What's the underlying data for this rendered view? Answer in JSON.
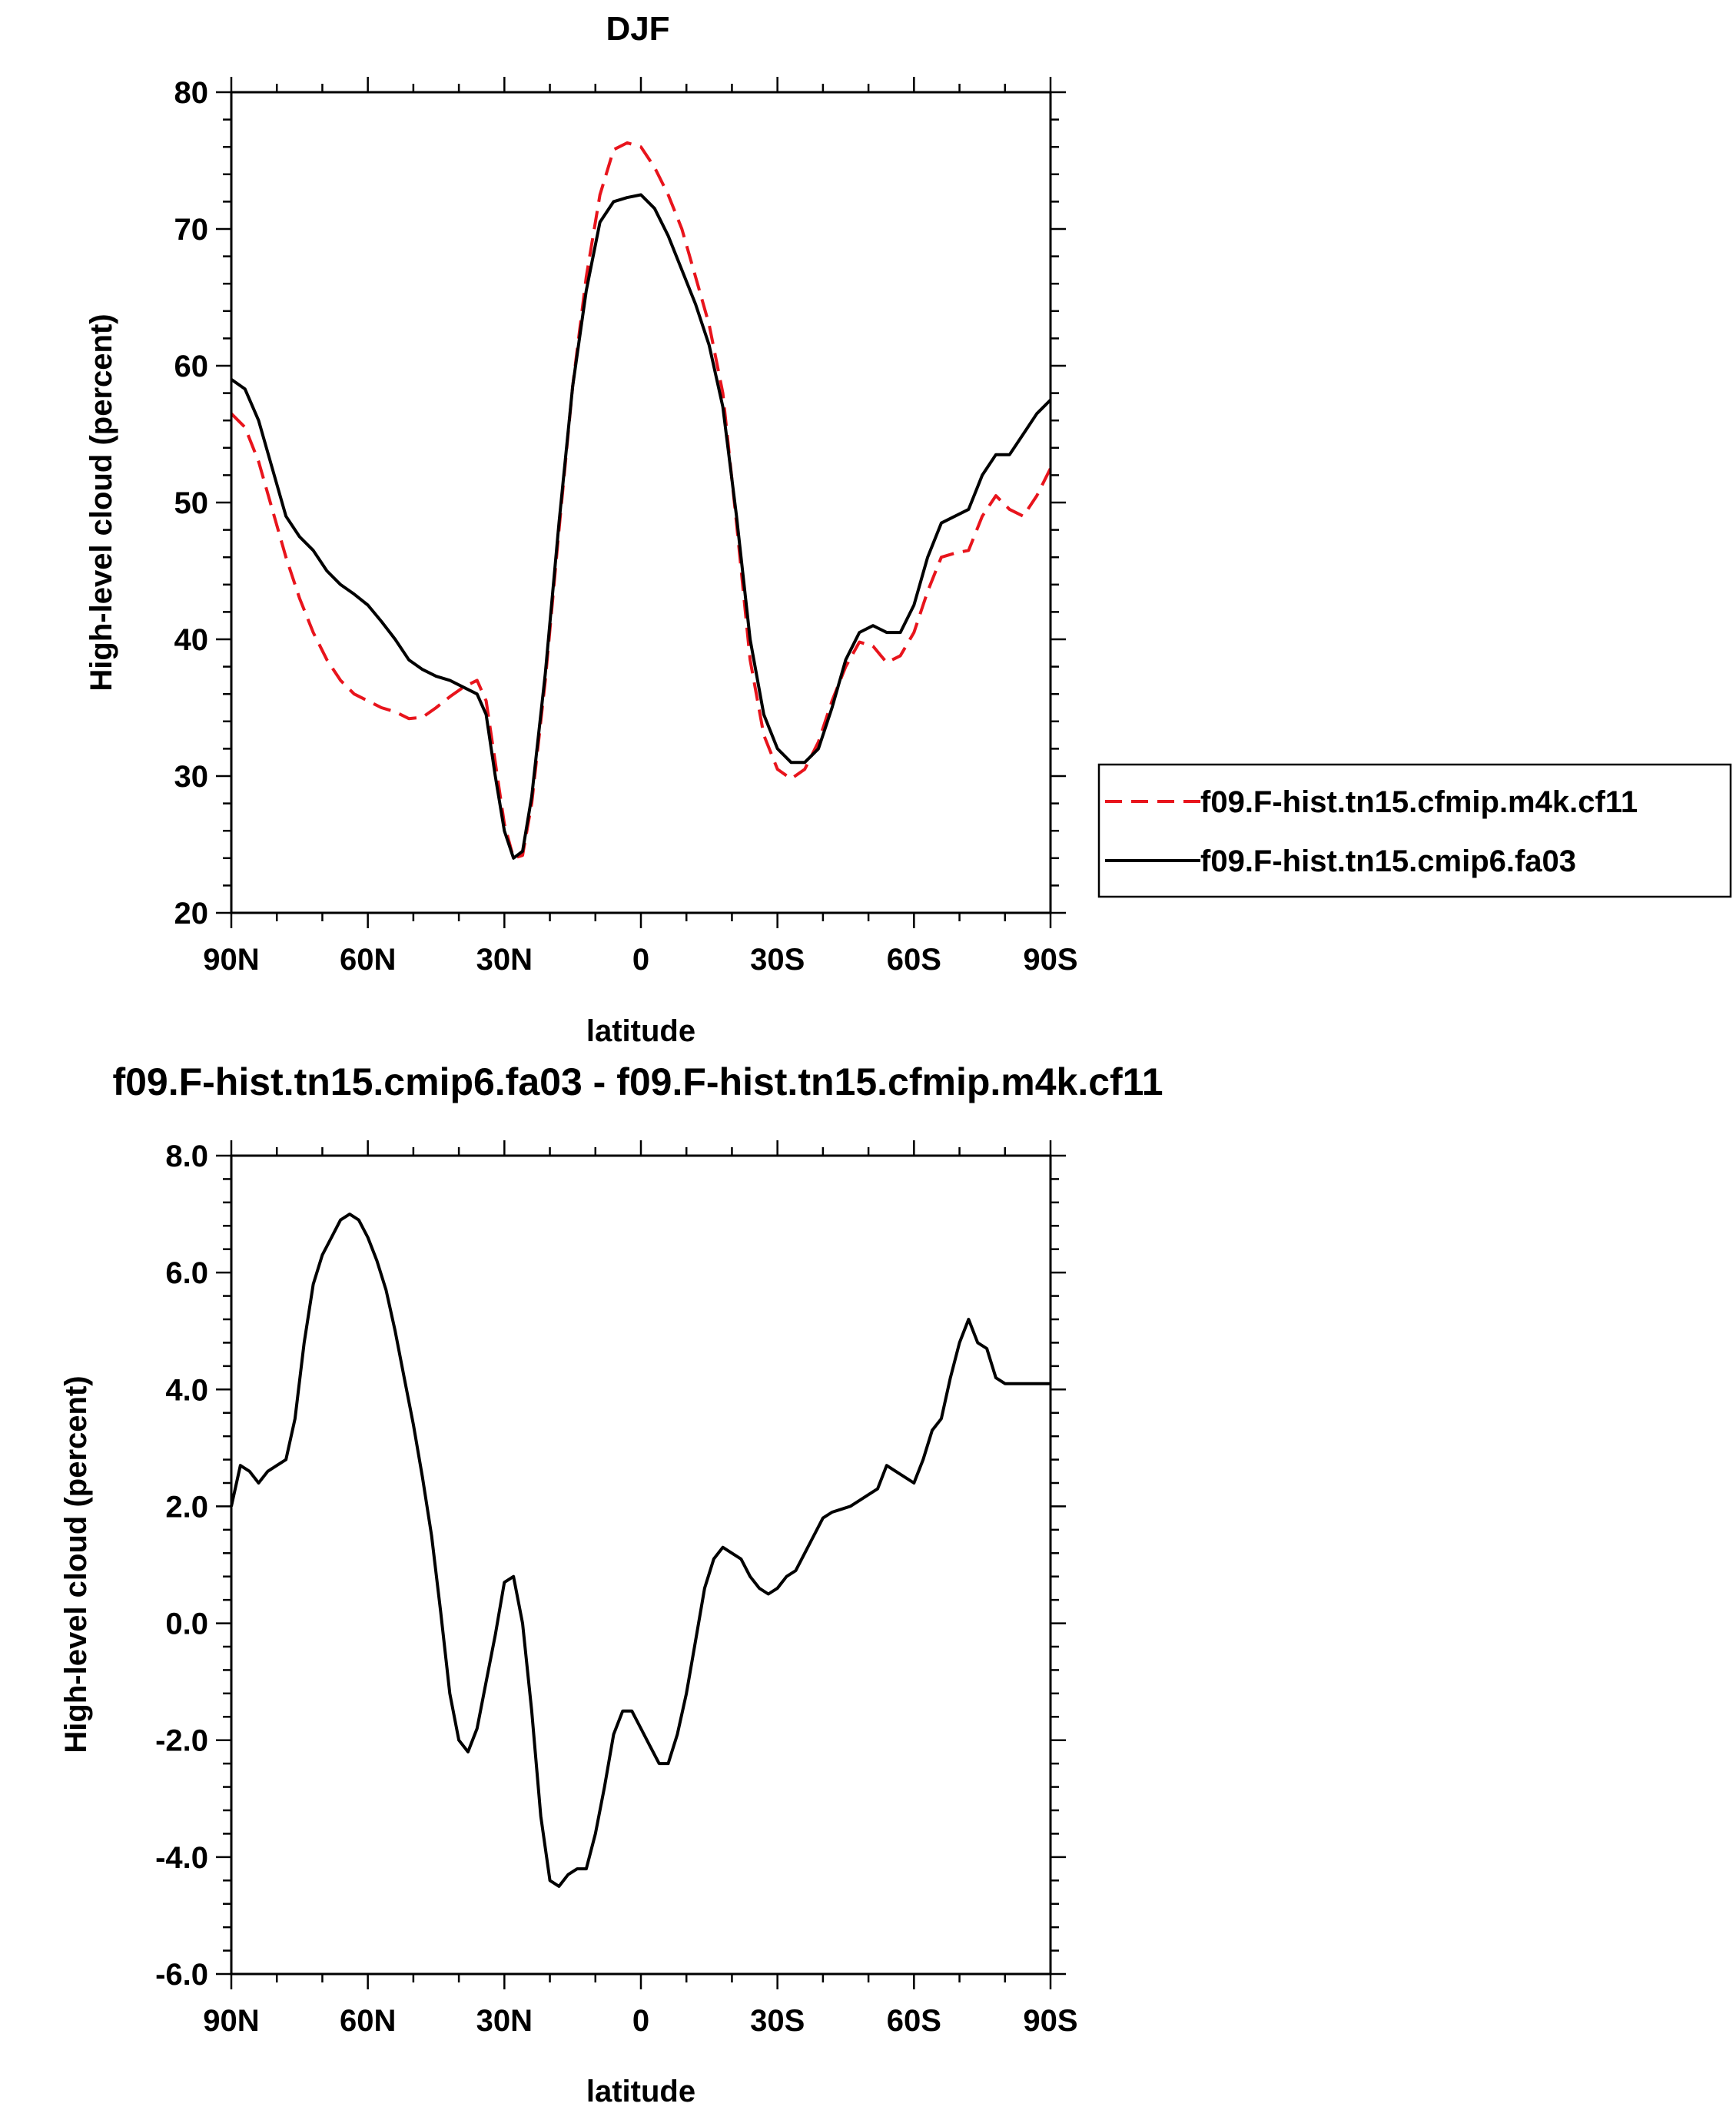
{
  "chart_data": [
    {
      "type": "line",
      "title": "DJF",
      "xlabel": "latitude",
      "ylabel": "High-level cloud (percent)",
      "xlim": [
        -90,
        90
      ],
      "ylim": [
        20,
        80
      ],
      "x_ticks": [
        -90,
        -60,
        -30,
        0,
        30,
        60,
        90
      ],
      "x_tick_labels": [
        "90N",
        "60N",
        "30N",
        "0",
        "30S",
        "60S",
        "90S"
      ],
      "y_ticks": [
        20,
        30,
        40,
        50,
        60,
        70,
        80
      ],
      "y_tick_labels": [
        "20",
        "30",
        "40",
        "50",
        "60",
        "70",
        "80"
      ],
      "legend_position": "right",
      "series": [
        {
          "name": "f09.F-hist.tn15.cfmip.m4k.cf11",
          "color": "#e8141c",
          "dash": "dashed",
          "x": [
            -90,
            -87,
            -84,
            -81,
            -78,
            -75,
            -72,
            -69,
            -66,
            -63,
            -60,
            -57,
            -54,
            -51,
            -48,
            -45,
            -42,
            -39,
            -36,
            -34,
            -32,
            -30,
            -28,
            -26,
            -24,
            -21,
            -18,
            -15,
            -12,
            -9,
            -6,
            -3,
            0,
            3,
            6,
            9,
            12,
            15,
            18,
            21,
            24,
            27,
            30,
            33,
            36,
            39,
            42,
            45,
            48,
            51,
            54,
            57,
            60,
            63,
            66,
            69,
            72,
            75,
            78,
            81,
            84,
            87,
            90
          ],
          "values": [
            56.5,
            55.5,
            53.0,
            49.5,
            46.0,
            43.0,
            40.5,
            38.5,
            37.0,
            36.0,
            35.5,
            35.0,
            34.7,
            34.2,
            34.3,
            35.0,
            35.8,
            36.5,
            37.0,
            35.5,
            31.0,
            26.5,
            24.0,
            24.2,
            28.0,
            37.0,
            48.0,
            58.5,
            66.5,
            72.5,
            75.8,
            76.3,
            76.0,
            74.5,
            72.5,
            70.0,
            66.5,
            63.0,
            58.0,
            48.5,
            38.5,
            33.0,
            30.5,
            29.8,
            30.5,
            32.5,
            35.5,
            38.0,
            39.8,
            39.5,
            38.3,
            38.8,
            40.5,
            43.5,
            46.0,
            46.3,
            46.5,
            49.0,
            50.5,
            49.5,
            49.0,
            50.5,
            52.5
          ]
        },
        {
          "name": "f09.F-hist.tn15.cmip6.fa03",
          "color": "#000000",
          "dash": "solid",
          "x": [
            -90,
            -87,
            -84,
            -81,
            -78,
            -75,
            -72,
            -69,
            -66,
            -63,
            -60,
            -57,
            -54,
            -51,
            -48,
            -45,
            -42,
            -39,
            -36,
            -34,
            -32,
            -30,
            -28,
            -26,
            -24,
            -21,
            -18,
            -15,
            -12,
            -9,
            -6,
            -3,
            0,
            3,
            6,
            9,
            12,
            15,
            18,
            21,
            24,
            27,
            30,
            33,
            36,
            39,
            42,
            45,
            48,
            51,
            54,
            57,
            60,
            63,
            66,
            69,
            72,
            75,
            78,
            81,
            84,
            87,
            90
          ],
          "values": [
            59.0,
            58.3,
            56.0,
            52.5,
            49.0,
            47.5,
            46.5,
            45.0,
            44.0,
            43.3,
            42.5,
            41.3,
            40.0,
            38.5,
            37.8,
            37.3,
            37.0,
            36.5,
            36.0,
            34.5,
            30.0,
            26.0,
            24.0,
            24.5,
            28.5,
            37.5,
            48.5,
            58.5,
            65.5,
            70.5,
            72.0,
            72.3,
            72.5,
            71.5,
            69.5,
            67.0,
            64.5,
            61.5,
            57.0,
            49.0,
            40.0,
            34.5,
            32.0,
            31.0,
            31.0,
            32.0,
            35.0,
            38.5,
            40.5,
            41.0,
            40.5,
            40.5,
            42.5,
            46.0,
            48.5,
            49.0,
            49.5,
            52.0,
            53.5,
            53.5,
            55.0,
            56.5,
            57.5
          ]
        }
      ]
    },
    {
      "type": "line",
      "title": "f09.F-hist.tn15.cmip6.fa03 - f09.F-hist.tn15.cfmip.m4k.cf11",
      "xlabel": "latitude",
      "ylabel": "High-level cloud (percent)",
      "xlim": [
        -90,
        90
      ],
      "ylim": [
        -6,
        8
      ],
      "x_ticks": [
        -90,
        -60,
        -30,
        0,
        30,
        60,
        90
      ],
      "x_tick_labels": [
        "90N",
        "60N",
        "30N",
        "0",
        "30S",
        "60S",
        "90S"
      ],
      "y_ticks": [
        -6,
        -4,
        -2,
        0,
        2,
        4,
        6,
        8
      ],
      "y_tick_labels": [
        "-6.0",
        "-4.0",
        "-2.0",
        "0.0",
        "2.0",
        "4.0",
        "6.0",
        "8.0"
      ],
      "series": [
        {
          "color": "#000000",
          "dash": "solid",
          "x": [
            -90,
            -88,
            -86,
            -84,
            -82,
            -80,
            -78,
            -76,
            -74,
            -72,
            -70,
            -68,
            -66,
            -64,
            -62,
            -60,
            -58,
            -56,
            -54,
            -52,
            -50,
            -48,
            -46,
            -44,
            -42,
            -40,
            -38,
            -36,
            -34,
            -32,
            -30,
            -28,
            -26,
            -24,
            -22,
            -20,
            -18,
            -16,
            -14,
            -12,
            -10,
            -8,
            -6,
            -4,
            -2,
            0,
            2,
            4,
            6,
            8,
            10,
            12,
            14,
            16,
            18,
            20,
            22,
            24,
            26,
            28,
            30,
            32,
            34,
            36,
            38,
            40,
            42,
            44,
            46,
            48,
            50,
            52,
            54,
            56,
            58,
            60,
            62,
            64,
            66,
            68,
            70,
            72,
            74,
            76,
            78,
            80,
            82,
            84,
            86,
            88,
            90
          ],
          "values": [
            2.0,
            2.7,
            2.6,
            2.4,
            2.6,
            2.7,
            2.8,
            3.5,
            4.8,
            5.8,
            6.3,
            6.6,
            6.9,
            7.0,
            6.9,
            6.6,
            6.2,
            5.7,
            5.0,
            4.2,
            3.4,
            2.5,
            1.5,
            0.2,
            -1.2,
            -2.0,
            -2.2,
            -1.8,
            -1.0,
            -0.2,
            0.7,
            0.8,
            0.0,
            -1.5,
            -3.3,
            -4.4,
            -4.5,
            -4.3,
            -4.2,
            -4.2,
            -3.6,
            -2.8,
            -1.9,
            -1.5,
            -1.5,
            -1.8,
            -2.1,
            -2.4,
            -2.4,
            -1.9,
            -1.2,
            -0.3,
            0.6,
            1.1,
            1.3,
            1.2,
            1.1,
            0.8,
            0.6,
            0.5,
            0.6,
            0.8,
            0.9,
            1.2,
            1.5,
            1.8,
            1.9,
            1.95,
            2.0,
            2.1,
            2.2,
            2.3,
            2.7,
            2.6,
            2.5,
            2.4,
            2.8,
            3.3,
            3.5,
            4.2,
            4.8,
            5.2,
            4.8,
            4.7,
            4.2,
            4.1,
            4.1,
            4.1,
            4.1,
            4.1,
            4.1
          ]
        }
      ]
    }
  ]
}
